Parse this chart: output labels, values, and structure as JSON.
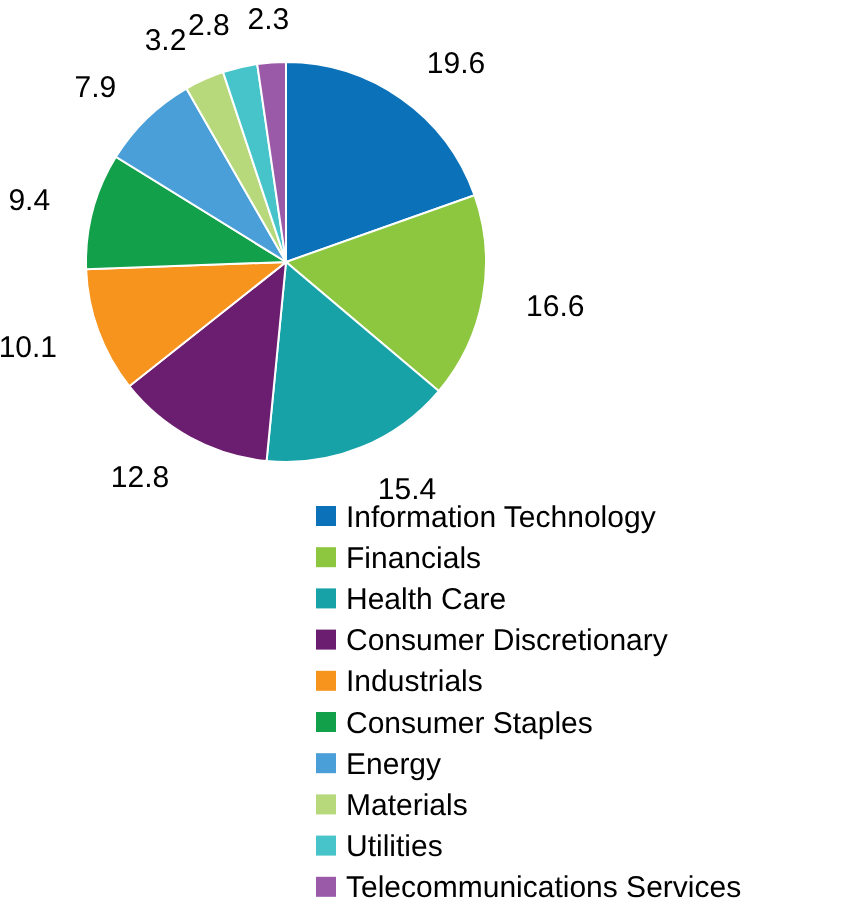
{
  "chart_data": {
    "type": "pie",
    "categories": [
      "Information Technology",
      "Financials",
      "Health Care",
      "Consumer Discretionary",
      "Industrials",
      "Consumer Staples",
      "Energy",
      "Materials",
      "Utilities",
      "Telecommunications Services"
    ],
    "values": [
      19.6,
      16.6,
      15.4,
      12.8,
      10.1,
      9.4,
      7.9,
      3.2,
      2.8,
      2.3
    ],
    "colors": [
      "#0b72b9",
      "#8dc63f",
      "#17a2a8",
      "#6b1d6f",
      "#f7941d",
      "#12a04b",
      "#4a9fd8",
      "#b7d97c",
      "#46c4c9",
      "#9a5aa8"
    ],
    "data_labels": true,
    "legend": "bottom"
  }
}
